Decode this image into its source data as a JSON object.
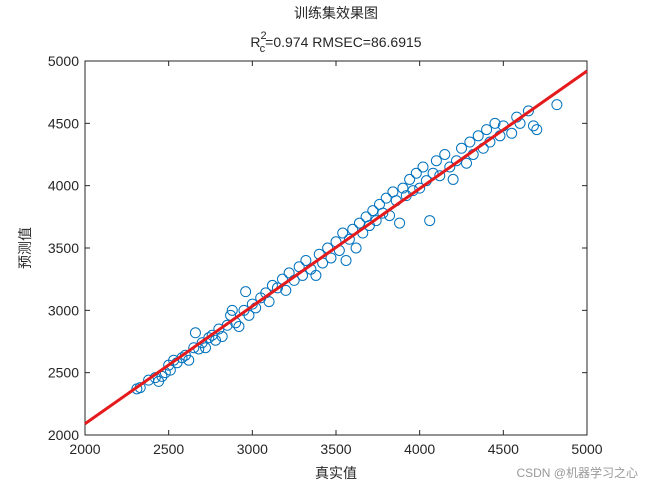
{
  "chart_data": {
    "type": "scatter",
    "title": "训练集效果图",
    "subtitle": {
      "base": "R",
      "sub": "c",
      "sup": "2",
      "rest": "=0.974  RMSEC=86.6915"
    },
    "x_label": "真实值",
    "y_label": "预测值",
    "watermark": "CSDN @机器学习之心",
    "xlim": [
      2000,
      5000
    ],
    "ylim": [
      2000,
      5000
    ],
    "xticks": [
      2000,
      2500,
      3000,
      3500,
      4000,
      4500,
      5000
    ],
    "yticks": [
      2000,
      2500,
      3000,
      3500,
      4000,
      4500,
      5000
    ],
    "grid": false,
    "color": "#0072bd",
    "x": [
      2310,
      2330,
      2380,
      2420,
      2440,
      2460,
      2480,
      2500,
      2510,
      2530,
      2550,
      2580,
      2600,
      2620,
      2650,
      2660,
      2680,
      2700,
      2720,
      2740,
      2760,
      2780,
      2800,
      2820,
      2850,
      2870,
      2880,
      2900,
      2920,
      2950,
      2960,
      2980,
      3000,
      3020,
      3050,
      3080,
      3100,
      3120,
      3150,
      3180,
      3200,
      3220,
      3250,
      3280,
      3300,
      3320,
      3350,
      3380,
      3400,
      3420,
      3450,
      3470,
      3500,
      3520,
      3540,
      3560,
      3580,
      3600,
      3620,
      3640,
      3660,
      3680,
      3700,
      3720,
      3740,
      3760,
      3780,
      3800,
      3820,
      3840,
      3860,
      3880,
      3900,
      3920,
      3940,
      3960,
      3980,
      4000,
      4020,
      4040,
      4060,
      4080,
      4100,
      4120,
      4150,
      4180,
      4200,
      4220,
      4250,
      4280,
      4300,
      4320,
      4350,
      4380,
      4400,
      4420,
      4450,
      4480,
      4500,
      4550,
      4580,
      4600,
      4650,
      4680,
      4700,
      4820
    ],
    "y": [
      2370,
      2380,
      2440,
      2460,
      2430,
      2470,
      2500,
      2560,
      2520,
      2600,
      2580,
      2620,
      2640,
      2600,
      2700,
      2820,
      2690,
      2740,
      2700,
      2780,
      2800,
      2760,
      2850,
      2790,
      2880,
      2960,
      3000,
      2900,
      2870,
      3000,
      3150,
      2960,
      3050,
      3020,
      3100,
      3140,
      3070,
      3200,
      3180,
      3250,
      3160,
      3300,
      3240,
      3350,
      3280,
      3400,
      3330,
      3280,
      3450,
      3380,
      3500,
      3420,
      3550,
      3480,
      3620,
      3400,
      3570,
      3650,
      3500,
      3700,
      3620,
      3750,
      3680,
      3800,
      3720,
      3850,
      3780,
      3900,
      3760,
      3950,
      3880,
      3700,
      3980,
      3920,
      4050,
      3960,
      4100,
      3980,
      4150,
      4040,
      3720,
      4100,
      4200,
      4080,
      4250,
      4150,
      4050,
      4200,
      4300,
      4180,
      4350,
      4250,
      4400,
      4300,
      4450,
      4350,
      4500,
      4400,
      4480,
      4420,
      4550,
      4500,
      4600,
      4480,
      4450,
      4650
    ],
    "fit_line": {
      "x": [
        2000,
        5000
      ],
      "y": [
        2090,
        4920
      ],
      "color": "#e41a1c"
    }
  }
}
